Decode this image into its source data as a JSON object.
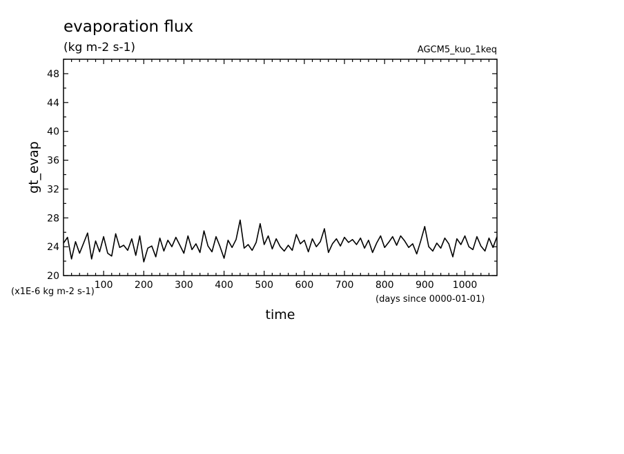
{
  "chart_data": {
    "type": "line",
    "title": "evaporation flux",
    "units": "(kg m-2 s-1)",
    "run_label": "AGCM5_kuo_1keq",
    "xlabel": "time",
    "x_units": "(days since 0000-01-01)",
    "ylabel": "gt_evap",
    "y_scale_note": "(x1E-6 kg m-2 s-1)",
    "xlim": [
      0,
      1080
    ],
    "ylim": [
      20,
      50
    ],
    "x_ticks": [
      100,
      200,
      300,
      400,
      500,
      600,
      700,
      800,
      900,
      1000
    ],
    "y_ticks": [
      20,
      24,
      28,
      32,
      36,
      40,
      44,
      48
    ],
    "grid": false,
    "series": [
      {
        "x": [
          0,
          10,
          20,
          30,
          40,
          50,
          60,
          70,
          80,
          90,
          100,
          110,
          120,
          130,
          140,
          150,
          160,
          170,
          180,
          190,
          200,
          210,
          220,
          230,
          240,
          250,
          260,
          270,
          280,
          290,
          300,
          310,
          320,
          330,
          340,
          350,
          360,
          370,
          380,
          390,
          400,
          410,
          420,
          430,
          440,
          450,
          460,
          470,
          480,
          490,
          500,
          510,
          520,
          530,
          540,
          550,
          560,
          570,
          580,
          590,
          600,
          610,
          620,
          630,
          640,
          650,
          660,
          670,
          680,
          690,
          700,
          710,
          720,
          730,
          740,
          750,
          760,
          770,
          780,
          790,
          800,
          810,
          820,
          830,
          840,
          850,
          860,
          870,
          880,
          890,
          900,
          910,
          920,
          930,
          940,
          950,
          960,
          970,
          980,
          990,
          1000,
          1010,
          1020,
          1030,
          1040,
          1050,
          1060,
          1070,
          1080
        ],
        "values": [
          24.5,
          25.3,
          22.3,
          24.7,
          23.1,
          24.5,
          25.9,
          22.3,
          24.8,
          23.3,
          25.4,
          23.1,
          22.7,
          25.8,
          23.9,
          24.2,
          23.5,
          25.1,
          22.8,
          25.5,
          21.9,
          23.8,
          24.1,
          22.6,
          25.2,
          23.4,
          24.9,
          24.0,
          25.3,
          24.2,
          23.1,
          25.5,
          23.6,
          24.4,
          23.2,
          26.2,
          24.1,
          23.3,
          25.4,
          24.0,
          22.4,
          24.9,
          23.9,
          25.0,
          27.7,
          23.8,
          24.3,
          23.5,
          24.6,
          27.2,
          24.3,
          25.5,
          23.7,
          25.1,
          24.0,
          23.4,
          24.2,
          23.5,
          25.7,
          24.4,
          24.9,
          23.3,
          25.1,
          24.0,
          24.7,
          26.5,
          23.2,
          24.4,
          25.1,
          24.1,
          25.3,
          24.6,
          25.0,
          24.3,
          25.2,
          23.8,
          24.9,
          23.2,
          24.5,
          25.5,
          23.9,
          24.6,
          25.4,
          24.2,
          25.5,
          24.8,
          23.9,
          24.4,
          23.0,
          24.8,
          26.8,
          24.0,
          23.4,
          24.5,
          23.8,
          25.2,
          24.4,
          22.6,
          25.1,
          24.3,
          25.5,
          24.0,
          23.6,
          25.4,
          24.1,
          23.4,
          25.2,
          23.9,
          25.4
        ]
      }
    ]
  }
}
